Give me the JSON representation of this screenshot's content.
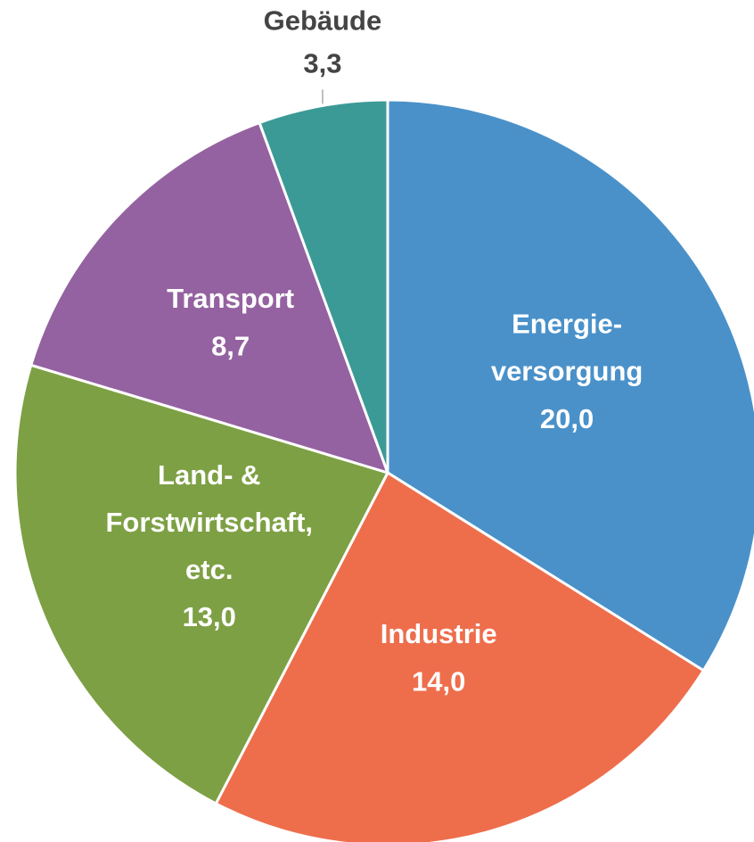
{
  "chart_data": {
    "type": "pie",
    "categories": [
      "Energie-\nversorgung",
      "Industrie",
      "Land- &\nForstwirtschaft,\netc.",
      "Transport",
      "Gebäude"
    ],
    "values": [
      20.0,
      14.0,
      13.0,
      8.7,
      3.3
    ],
    "value_labels": [
      "20,0",
      "14,0",
      "13,0",
      "8,7",
      "3,3"
    ],
    "colors": [
      "#4a91c9",
      "#ee6e4c",
      "#7da044",
      "#9462a0",
      "#3b9a96"
    ]
  }
}
